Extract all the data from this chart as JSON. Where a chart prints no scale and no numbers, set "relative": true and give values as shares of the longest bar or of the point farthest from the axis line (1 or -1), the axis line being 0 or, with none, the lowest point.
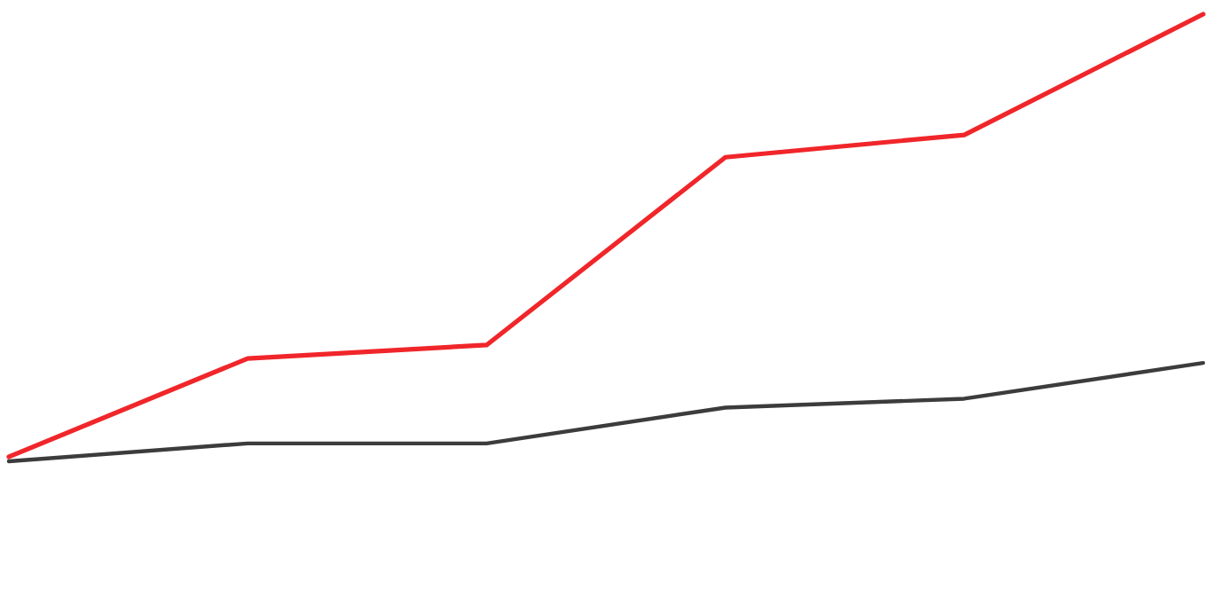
{
  "chart_data": {
    "type": "line",
    "relative": true,
    "categories": [
      null,
      null,
      null,
      null,
      null,
      null
    ],
    "series": [
      {
        "color": "#f0262a",
        "values": [
          0.01,
          0.23,
          0.26,
          0.68,
          0.73,
          1
        ]
      },
      {
        "color": "#3c3c3c",
        "values": [
          0,
          0.04,
          0.04,
          0.12,
          0.14,
          0.22
        ]
      }
    ]
  }
}
